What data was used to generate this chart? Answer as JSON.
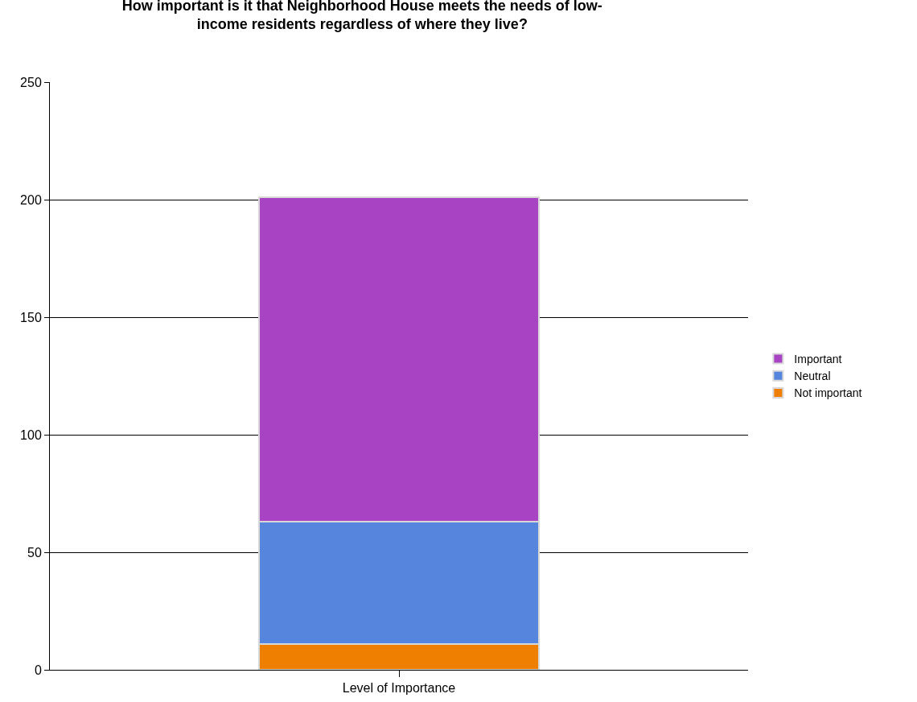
{
  "chart_data": {
    "type": "bar",
    "title": "How important is it that Neighborhood House meets the needs of low-income residents regardless of where they live?",
    "categories": [
      "Level of Importance"
    ],
    "stacked": true,
    "series": [
      {
        "name": "Not important",
        "color": "#ef7f00",
        "values": [
          11
        ]
      },
      {
        "name": "Neutral",
        "color": "#5585dc",
        "values": [
          52
        ]
      },
      {
        "name": "Important",
        "color": "#a844c4",
        "values": [
          138
        ]
      }
    ],
    "ylim": [
      0,
      250
    ],
    "yticks": [
      0,
      50,
      100,
      150,
      200,
      250
    ],
    "grid": "y",
    "legend": "right"
  }
}
